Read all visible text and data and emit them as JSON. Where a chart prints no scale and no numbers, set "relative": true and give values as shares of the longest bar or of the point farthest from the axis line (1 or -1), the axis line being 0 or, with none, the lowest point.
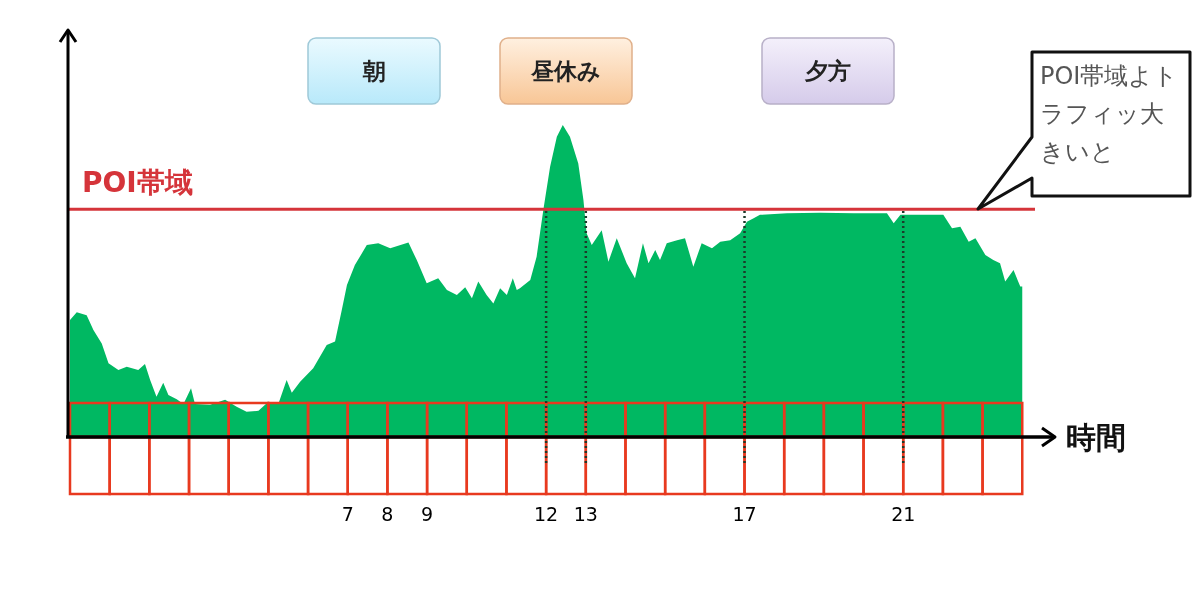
{
  "chart_data": {
    "type": "area",
    "relative": true,
    "color": "#00b862",
    "x": [
      0,
      0.17,
      0.42,
      0.59,
      0.8,
      0.97,
      1.22,
      1.43,
      1.72,
      1.89,
      2.02,
      2.18,
      2.35,
      2.48,
      2.69,
      2.86,
      3.05,
      3.15,
      3.53,
      3.91,
      4.2,
      4.45,
      4.75,
      5.0,
      5.25,
      5.46,
      5.59,
      5.8,
      6.13,
      6.47,
      6.68,
      6.85,
      6.98,
      7.18,
      7.48,
      7.77,
      8.07,
      8.53,
      8.74,
      8.99,
      9.28,
      9.5,
      9.75,
      9.96,
      10.13,
      10.29,
      10.5,
      10.67,
      10.84,
      11.01,
      11.16,
      11.26,
      11.34,
      11.6,
      11.76,
      11.93,
      12.1,
      12.27,
      12.42,
      12.6,
      12.81,
      12.94,
      13.02,
      13.15,
      13.4,
      13.57,
      13.78,
      14.03,
      14.24,
      14.44,
      14.58,
      14.75,
      14.87,
      15.04,
      15.3,
      15.5,
      15.71,
      15.92,
      16.18,
      16.39,
      16.64,
      16.89,
      17.06,
      17.23,
      17.39,
      18.07,
      18.91,
      19.75,
      20.59,
      20.76,
      20.93,
      21.43,
      22.01,
      22.23,
      22.44,
      22.65,
      22.82,
      23.07,
      23.27,
      23.44,
      23.57,
      23.78,
      23.95,
      24
    ],
    "values": [
      0.375,
      0.4,
      0.39,
      0.343,
      0.3,
      0.236,
      0.215,
      0.225,
      0.215,
      0.234,
      0.183,
      0.129,
      0.174,
      0.135,
      0.121,
      0.106,
      0.156,
      0.106,
      0.103,
      0.119,
      0.097,
      0.081,
      0.084,
      0.113,
      0.106,
      0.183,
      0.142,
      0.177,
      0.22,
      0.295,
      0.306,
      0.407,
      0.487,
      0.551,
      0.615,
      0.621,
      0.605,
      0.623,
      0.567,
      0.493,
      0.509,
      0.471,
      0.455,
      0.48,
      0.445,
      0.498,
      0.455,
      0.428,
      0.477,
      0.455,
      0.509,
      0.471,
      0.477,
      0.503,
      0.578,
      0.728,
      0.866,
      0.962,
      1,
      0.962,
      0.877,
      0.76,
      0.653,
      0.615,
      0.663,
      0.562,
      0.637,
      0.557,
      0.509,
      0.621,
      0.557,
      0.599,
      0.567,
      0.621,
      0.631,
      0.637,
      0.546,
      0.621,
      0.605,
      0.626,
      0.631,
      0.653,
      0.69,
      0.701,
      0.712,
      0.717,
      0.719,
      0.717,
      0.717,
      0.685,
      0.712,
      0.712,
      0.712,
      0.669,
      0.674,
      0.626,
      0.637,
      0.583,
      0.567,
      0.557,
      0.498,
      0.535,
      0.482,
      0.482
    ],
    "xlim": [
      0,
      24.8
    ],
    "xticks": [
      7,
      8,
      9,
      12,
      13,
      17,
      21
    ],
    "xlabel": "時間",
    "ref_lines": [
      {
        "axis": "y",
        "value": 0.73,
        "label": "POI帯域",
        "color": "#d5343a"
      },
      {
        "axis": "x",
        "value": 12,
        "line_style": "dotted",
        "color": "#1d3b2a"
      },
      {
        "axis": "x",
        "value": 13,
        "line_style": "dotted",
        "color": "#1d3b2a"
      },
      {
        "axis": "x",
        "value": 17,
        "line_style": "dotted",
        "color": "#1d3b2a"
      },
      {
        "axis": "x",
        "value": 21,
        "line_style": "dotted",
        "color": "#1d3b2a"
      }
    ],
    "annotations": [
      "朝",
      "昼休み",
      "夕方",
      "POI帯域よトラフィッ大きいと"
    ]
  }
}
